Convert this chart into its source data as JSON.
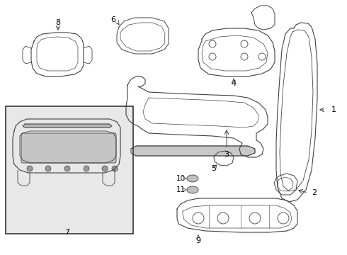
{
  "bg_color": "#ffffff",
  "line_color": "#404040",
  "box_color": "#e8e8e8",
  "box_edge": "#333333",
  "figsize": [
    4.9,
    3.6
  ],
  "dpi": 100,
  "xlim": [
    0,
    490
  ],
  "ylim": [
    0,
    360
  ]
}
